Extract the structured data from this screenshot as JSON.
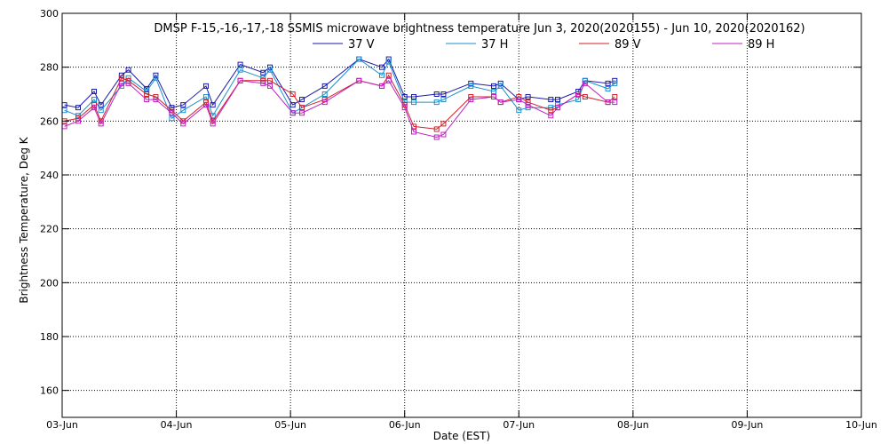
{
  "chart_data": {
    "type": "line",
    "title": "DMSP F-15,-16,-17,-18 SSMIS microwave brightness temperature Jun  3, 2020(2020155) - Jun 10, 2020(2020162)",
    "xlabel": "Date (EST)",
    "ylabel": "Brightness Temperature, Deg K",
    "xlim": [
      0,
      7
    ],
    "ylim": [
      150,
      300
    ],
    "x_ticks": [
      0,
      1,
      2,
      3,
      4,
      5,
      6,
      7
    ],
    "x_tick_labels": [
      "03-Jun",
      "04-Jun",
      "05-Jun",
      "06-Jun",
      "07-Jun",
      "08-Jun",
      "09-Jun",
      "10-Jun"
    ],
    "y_ticks": [
      160,
      180,
      200,
      220,
      240,
      260,
      280,
      300
    ],
    "y_tick_labels": [
      "160",
      "180",
      "200",
      "220",
      "240",
      "260",
      "280",
      "300"
    ],
    "grid": true,
    "legend_position": "top-center",
    "series": [
      {
        "name": "37 V",
        "color": "#1a1aa8",
        "points": [
          [
            0.02,
            266
          ],
          [
            0.14,
            265
          ],
          [
            0.28,
            271
          ],
          [
            0.34,
            266
          ],
          [
            0.52,
            277
          ],
          [
            0.58,
            279
          ],
          [
            0.74,
            272
          ],
          [
            0.82,
            277
          ],
          [
            0.96,
            265
          ],
          [
            1.06,
            266
          ],
          [
            1.26,
            273
          ],
          [
            1.32,
            266
          ],
          [
            1.56,
            281
          ],
          [
            1.76,
            278
          ],
          [
            1.82,
            280
          ],
          [
            2.02,
            266
          ],
          [
            2.1,
            268
          ],
          [
            2.3,
            273
          ],
          [
            2.6,
            283
          ],
          [
            2.8,
            280
          ],
          [
            2.86,
            283
          ],
          [
            3.0,
            269
          ],
          [
            3.08,
            269
          ],
          [
            3.28,
            270
          ],
          [
            3.34,
            270
          ],
          [
            3.58,
            274
          ],
          [
            3.78,
            273
          ],
          [
            3.84,
            274
          ],
          [
            4.0,
            268
          ],
          [
            4.08,
            269
          ],
          [
            4.28,
            268
          ],
          [
            4.34,
            268
          ],
          [
            4.52,
            271
          ],
          [
            4.58,
            275
          ],
          [
            4.78,
            274
          ],
          [
            4.84,
            275
          ]
        ]
      },
      {
        "name": "37 H",
        "color": "#1a8fd0",
        "points": [
          [
            0.02,
            264
          ],
          [
            0.14,
            262
          ],
          [
            0.28,
            268
          ],
          [
            0.34,
            264
          ],
          [
            0.52,
            273
          ],
          [
            0.58,
            276
          ],
          [
            0.74,
            271
          ],
          [
            0.82,
            276
          ],
          [
            0.96,
            261
          ],
          [
            1.06,
            264
          ],
          [
            1.26,
            269
          ],
          [
            1.32,
            262
          ],
          [
            1.56,
            279
          ],
          [
            1.76,
            276
          ],
          [
            1.82,
            279
          ],
          [
            2.02,
            263
          ],
          [
            2.1,
            265
          ],
          [
            2.3,
            270
          ],
          [
            2.6,
            283
          ],
          [
            2.8,
            277
          ],
          [
            2.86,
            282
          ],
          [
            3.0,
            267
          ],
          [
            3.08,
            267
          ],
          [
            3.28,
            267
          ],
          [
            3.34,
            268
          ],
          [
            3.58,
            273
          ],
          [
            3.78,
            271
          ],
          [
            3.84,
            273
          ],
          [
            4.0,
            264
          ],
          [
            4.08,
            265
          ],
          [
            4.28,
            265
          ],
          [
            4.34,
            266
          ],
          [
            4.52,
            268
          ],
          [
            4.58,
            275
          ],
          [
            4.78,
            272
          ],
          [
            4.84,
            274
          ]
        ]
      },
      {
        "name": "89 V",
        "color": "#d0202a",
        "points": [
          [
            0.02,
            260
          ],
          [
            0.14,
            261
          ],
          [
            0.28,
            266
          ],
          [
            0.34,
            260
          ],
          [
            0.52,
            276
          ],
          [
            0.58,
            275
          ],
          [
            0.74,
            270
          ],
          [
            0.82,
            269
          ],
          [
            0.96,
            264
          ],
          [
            1.06,
            260
          ],
          [
            1.26,
            267
          ],
          [
            1.32,
            260
          ],
          [
            1.56,
            275
          ],
          [
            1.76,
            275
          ],
          [
            1.82,
            275
          ],
          [
            2.02,
            270
          ],
          [
            2.1,
            265
          ],
          [
            2.3,
            268
          ],
          [
            2.6,
            275
          ],
          [
            2.8,
            273
          ],
          [
            2.86,
            277
          ],
          [
            3.0,
            266
          ],
          [
            3.08,
            258
          ],
          [
            3.28,
            257
          ],
          [
            3.34,
            259
          ],
          [
            3.58,
            269
          ],
          [
            3.78,
            269
          ],
          [
            3.84,
            267
          ],
          [
            4.0,
            269
          ],
          [
            4.08,
            267
          ],
          [
            4.28,
            264
          ],
          [
            4.34,
            265
          ],
          [
            4.52,
            270
          ],
          [
            4.58,
            269
          ],
          [
            4.78,
            267
          ],
          [
            4.84,
            269
          ]
        ]
      },
      {
        "name": "89 H",
        "color": "#c020c0",
        "points": [
          [
            0.02,
            258
          ],
          [
            0.14,
            260
          ],
          [
            0.28,
            265
          ],
          [
            0.34,
            259
          ],
          [
            0.52,
            274
          ],
          [
            0.58,
            274
          ],
          [
            0.74,
            268
          ],
          [
            0.82,
            268
          ],
          [
            0.96,
            263
          ],
          [
            1.06,
            259
          ],
          [
            1.26,
            266
          ],
          [
            1.32,
            259
          ],
          [
            1.56,
            275
          ],
          [
            1.76,
            274
          ],
          [
            1.82,
            273
          ],
          [
            2.02,
            263
          ],
          [
            2.1,
            263
          ],
          [
            2.3,
            267
          ],
          [
            2.6,
            275
          ],
          [
            2.8,
            273
          ],
          [
            2.86,
            275
          ],
          [
            3.0,
            265
          ],
          [
            3.08,
            256
          ],
          [
            3.28,
            254
          ],
          [
            3.34,
            255
          ],
          [
            3.58,
            268
          ],
          [
            3.78,
            269
          ],
          [
            3.84,
            267
          ],
          [
            4.0,
            268
          ],
          [
            4.08,
            266
          ],
          [
            4.28,
            262
          ],
          [
            4.34,
            265
          ],
          [
            4.52,
            270
          ],
          [
            4.58,
            274
          ],
          [
            4.78,
            267
          ],
          [
            4.84,
            267
          ]
        ]
      }
    ]
  }
}
